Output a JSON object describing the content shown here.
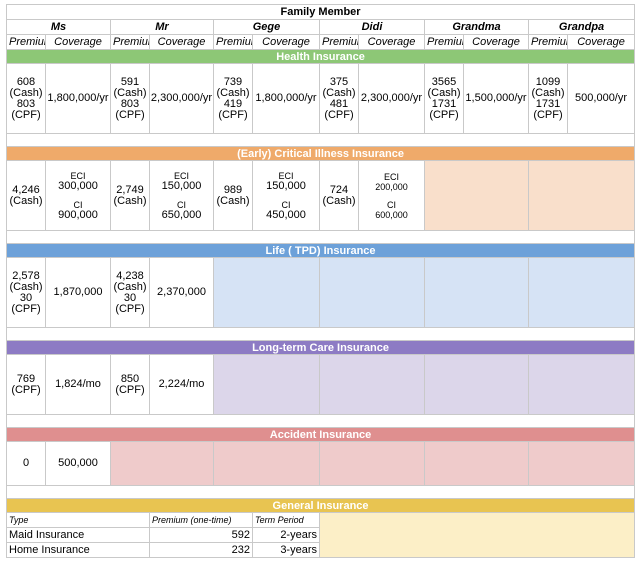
{
  "title": "Family Member",
  "members": [
    "Ms",
    "Mr",
    "Gege",
    "Didi",
    "Grandma",
    "Grandpa"
  ],
  "sub_headers": {
    "premium": "Premium",
    "coverage": "Coverage"
  },
  "colors": {
    "health": "#8dc776",
    "critical": "#efaa6a",
    "life": "#6da1d9",
    "longterm": "#8d7bc4",
    "accident": "#df8f8f",
    "general": "#e8c451"
  },
  "sections": {
    "health": {
      "label": "Health Insurance",
      "cells": [
        {
          "premium": "608\n(Cash)\n803\n(CPF)",
          "coverage": "1,800,000/yr"
        },
        {
          "premium": "591\n(Cash)\n803\n(CPF)",
          "coverage": "2,300,000/yr"
        },
        {
          "premium": "739\n(Cash)\n419\n(CPF)",
          "coverage": "1,800,000/yr"
        },
        {
          "premium": "375\n(Cash)\n481\n(CPF)",
          "coverage": "2,300,000/yr"
        },
        {
          "premium": "3565\n(Cash)\n1731\n(CPF)",
          "coverage": "1,500,000/yr"
        },
        {
          "premium": "1099\n(Cash)\n1731\n(CPF)",
          "coverage": "500,000/yr"
        }
      ]
    },
    "critical": {
      "label": "(Early) Critical Illness Insurance",
      "cells": [
        {
          "premium": "4,246\n(Cash)",
          "eci_label": "ECI",
          "eci": "300,000",
          "ci_label": "CI",
          "ci": "900,000"
        },
        {
          "premium": "2,749\n(Cash)",
          "eci_label": "ECI",
          "eci": "150,000",
          "ci_label": "CI",
          "ci": "650,000"
        },
        {
          "premium": "989\n(Cash)",
          "eci_label": "ECI",
          "eci": "150,000",
          "ci_label": "CI",
          "ci": "450,000"
        },
        {
          "premium": "724\n(Cash)",
          "eci_label": "ECI",
          "eci": "200,000",
          "ci_label": "CI",
          "ci": "600,000"
        }
      ]
    },
    "life": {
      "label": "Life ( TPD) Insurance",
      "cells": [
        {
          "premium": "2,578\n(Cash)\n30\n(CPF)",
          "coverage": "1,870,000"
        },
        {
          "premium": "4,238\n(Cash)\n30\n(CPF)",
          "coverage": "2,370,000"
        }
      ]
    },
    "longterm": {
      "label": "Long-term Care Insurance",
      "cells": [
        {
          "premium": "769\n(CPF)",
          "coverage": "1,824/mo"
        },
        {
          "premium": "850\n(CPF)",
          "coverage": "2,224/mo"
        }
      ]
    },
    "accident": {
      "label": "Accident Insurance",
      "cells": [
        {
          "premium": "0",
          "coverage": "500,000"
        }
      ]
    },
    "general": {
      "label": "General Insurance",
      "headers": {
        "type": "Type",
        "premium": "Premium (one-time)",
        "term": "Term Period"
      },
      "rows": [
        {
          "type": "Maid Insurance",
          "premium": "592",
          "term": "2-years"
        },
        {
          "type": "Home Insurance",
          "premium": "232",
          "term": "3-years"
        }
      ]
    }
  }
}
